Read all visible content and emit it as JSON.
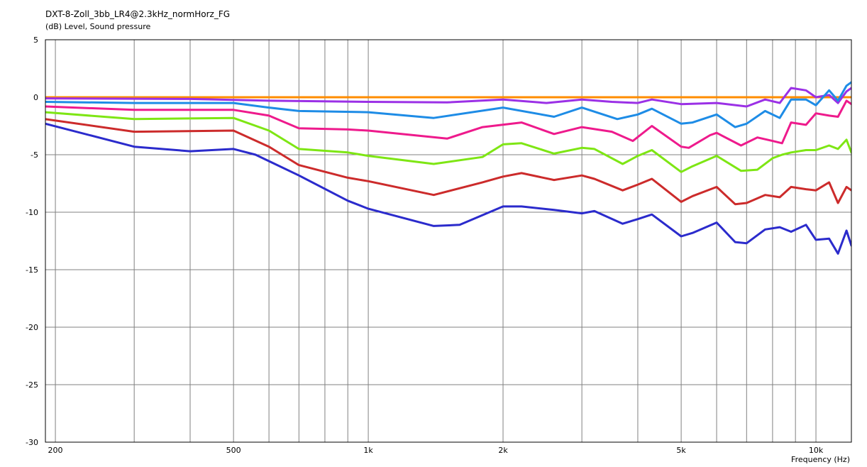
{
  "header": {
    "title": "DXT-8-Zoll_3bb_LR4@2.3kHz_normHorz_FG",
    "subtitle": "(dB)  Level, Sound pressure"
  },
  "chart_data": {
    "type": "line",
    "title": "DXT-8-Zoll_3bb_LR4@2.3kHz_normHorz_FG",
    "ylabel": "(dB)  Level, Sound pressure",
    "xlabel": "Frequency  (Hz)",
    "xscale": "log",
    "xlim": [
      190,
      12000
    ],
    "ylim": [
      -30,
      5
    ],
    "grid": true,
    "legend": "none",
    "y_ticks": [
      5,
      0,
      -5,
      -10,
      -15,
      -20,
      -25,
      -30
    ],
    "x_ticks": [
      {
        "value": 200,
        "label": "200"
      },
      {
        "value": 500,
        "label": "500"
      },
      {
        "value": 1000,
        "label": "1k"
      },
      {
        "value": 2000,
        "label": "2k"
      },
      {
        "value": 5000,
        "label": "5k"
      },
      {
        "value": 10000,
        "label": "10k"
      }
    ],
    "x_minor_grid": [
      300,
      400,
      600,
      700,
      800,
      900,
      3000,
      4000,
      6000,
      7000,
      8000,
      9000
    ],
    "series": [
      {
        "color": "#ff8c00",
        "points": [
          [
            190,
            0
          ],
          [
            500,
            0
          ],
          [
            1000,
            0
          ],
          [
            2000,
            0
          ],
          [
            5000,
            0
          ],
          [
            8000,
            0
          ],
          [
            12000,
            0
          ]
        ]
      },
      {
        "color": "#9b30e6",
        "points": [
          [
            190,
            -0.1
          ],
          [
            400,
            -0.15
          ],
          [
            600,
            -0.3
          ],
          [
            1000,
            -0.4
          ],
          [
            1500,
            -0.45
          ],
          [
            2000,
            -0.2
          ],
          [
            2500,
            -0.5
          ],
          [
            3000,
            -0.2
          ],
          [
            3500,
            -0.4
          ],
          [
            4000,
            -0.5
          ],
          [
            4300,
            -0.2
          ],
          [
            5000,
            -0.6
          ],
          [
            6000,
            -0.5
          ],
          [
            7000,
            -0.8
          ],
          [
            7700,
            -0.2
          ],
          [
            8300,
            -0.5
          ],
          [
            8800,
            0.8
          ],
          [
            9500,
            0.6
          ],
          [
            10000,
            0
          ],
          [
            10700,
            0.2
          ],
          [
            11200,
            -0.5
          ],
          [
            11700,
            0.5
          ],
          [
            12000,
            0.8
          ]
        ]
      },
      {
        "color": "#1e8ce6",
        "points": [
          [
            190,
            -0.4
          ],
          [
            300,
            -0.5
          ],
          [
            500,
            -0.5
          ],
          [
            600,
            -0.9
          ],
          [
            700,
            -1.2
          ],
          [
            1000,
            -1.3
          ],
          [
            1400,
            -1.8
          ],
          [
            2000,
            -0.9
          ],
          [
            2600,
            -1.7
          ],
          [
            3000,
            -0.9
          ],
          [
            3600,
            -1.9
          ],
          [
            4000,
            -1.5
          ],
          [
            4300,
            -1
          ],
          [
            5000,
            -2.3
          ],
          [
            5300,
            -2.2
          ],
          [
            6000,
            -1.5
          ],
          [
            6600,
            -2.6
          ],
          [
            7000,
            -2.3
          ],
          [
            7700,
            -1.2
          ],
          [
            8300,
            -1.8
          ],
          [
            8800,
            -0.2
          ],
          [
            9500,
            -0.2
          ],
          [
            10000,
            -0.7
          ],
          [
            10700,
            0.6
          ],
          [
            11200,
            -0.3
          ],
          [
            11700,
            1
          ],
          [
            12000,
            1.3
          ]
        ]
      },
      {
        "color": "#ee1a8c",
        "points": [
          [
            190,
            -0.8
          ],
          [
            300,
            -1.1
          ],
          [
            500,
            -1.1
          ],
          [
            600,
            -1.6
          ],
          [
            700,
            -2.7
          ],
          [
            900,
            -2.8
          ],
          [
            1000,
            -2.9
          ],
          [
            1500,
            -3.6
          ],
          [
            1800,
            -2.6
          ],
          [
            2200,
            -2.2
          ],
          [
            2600,
            -3.2
          ],
          [
            3000,
            -2.6
          ],
          [
            3500,
            -3
          ],
          [
            3900,
            -3.8
          ],
          [
            4300,
            -2.5
          ],
          [
            5000,
            -4.3
          ],
          [
            5200,
            -4.4
          ],
          [
            5800,
            -3.3
          ],
          [
            6000,
            -3.1
          ],
          [
            6800,
            -4.2
          ],
          [
            7400,
            -3.5
          ],
          [
            8000,
            -3.8
          ],
          [
            8400,
            -4
          ],
          [
            8800,
            -2.2
          ],
          [
            9500,
            -2.4
          ],
          [
            10000,
            -1.4
          ],
          [
            10700,
            -1.6
          ],
          [
            11200,
            -1.7
          ],
          [
            11700,
            -0.3
          ],
          [
            12000,
            -0.6
          ]
        ]
      },
      {
        "color": "#7ee614",
        "points": [
          [
            190,
            -1.3
          ],
          [
            300,
            -1.9
          ],
          [
            500,
            -1.8
          ],
          [
            600,
            -2.9
          ],
          [
            700,
            -4.5
          ],
          [
            900,
            -4.8
          ],
          [
            1000,
            -5.1
          ],
          [
            1400,
            -5.8
          ],
          [
            1800,
            -5.2
          ],
          [
            2000,
            -4.1
          ],
          [
            2200,
            -4
          ],
          [
            2600,
            -4.9
          ],
          [
            3000,
            -4.4
          ],
          [
            3200,
            -4.5
          ],
          [
            3700,
            -5.8
          ],
          [
            4000,
            -5.1
          ],
          [
            4300,
            -4.6
          ],
          [
            5000,
            -6.5
          ],
          [
            5300,
            -6
          ],
          [
            6000,
            -5.1
          ],
          [
            6800,
            -6.4
          ],
          [
            7400,
            -6.3
          ],
          [
            8000,
            -5.3
          ],
          [
            8400,
            -5
          ],
          [
            8800,
            -4.8
          ],
          [
            9500,
            -4.6
          ],
          [
            10000,
            -4.6
          ],
          [
            10700,
            -4.2
          ],
          [
            11200,
            -4.5
          ],
          [
            11700,
            -3.7
          ],
          [
            12000,
            -4.8
          ]
        ]
      },
      {
        "color": "#cc2b2b",
        "points": [
          [
            190,
            -1.9
          ],
          [
            300,
            -3
          ],
          [
            500,
            -2.9
          ],
          [
            600,
            -4.3
          ],
          [
            700,
            -5.9
          ],
          [
            900,
            -7
          ],
          [
            1000,
            -7.3
          ],
          [
            1400,
            -8.5
          ],
          [
            1800,
            -7.4
          ],
          [
            2000,
            -6.9
          ],
          [
            2200,
            -6.6
          ],
          [
            2600,
            -7.2
          ],
          [
            3000,
            -6.8
          ],
          [
            3200,
            -7.1
          ],
          [
            3700,
            -8.1
          ],
          [
            4000,
            -7.6
          ],
          [
            4300,
            -7.1
          ],
          [
            5000,
            -9.1
          ],
          [
            5300,
            -8.6
          ],
          [
            6000,
            -7.8
          ],
          [
            6600,
            -9.3
          ],
          [
            7000,
            -9.2
          ],
          [
            7700,
            -8.5
          ],
          [
            8300,
            -8.7
          ],
          [
            8800,
            -7.8
          ],
          [
            9500,
            -8
          ],
          [
            10000,
            -8.1
          ],
          [
            10700,
            -7.4
          ],
          [
            11200,
            -9.2
          ],
          [
            11700,
            -7.8
          ],
          [
            12000,
            -8.1
          ]
        ]
      },
      {
        "color": "#2b2bcc",
        "points": [
          [
            190,
            -2.3
          ],
          [
            300,
            -4.3
          ],
          [
            400,
            -4.7
          ],
          [
            500,
            -4.5
          ],
          [
            560,
            -5
          ],
          [
            700,
            -6.8
          ],
          [
            900,
            -9
          ],
          [
            1000,
            -9.7
          ],
          [
            1400,
            -11.2
          ],
          [
            1600,
            -11.1
          ],
          [
            2000,
            -9.5
          ],
          [
            2200,
            -9.5
          ],
          [
            2600,
            -9.8
          ],
          [
            3000,
            -10.1
          ],
          [
            3200,
            -9.9
          ],
          [
            3700,
            -11
          ],
          [
            4000,
            -10.6
          ],
          [
            4300,
            -10.2
          ],
          [
            5000,
            -12.1
          ],
          [
            5300,
            -11.8
          ],
          [
            6000,
            -10.9
          ],
          [
            6600,
            -12.6
          ],
          [
            7000,
            -12.7
          ],
          [
            7700,
            -11.5
          ],
          [
            8300,
            -11.3
          ],
          [
            8800,
            -11.7
          ],
          [
            9500,
            -11.1
          ],
          [
            10000,
            -12.4
          ],
          [
            10700,
            -12.3
          ],
          [
            11200,
            -13.6
          ],
          [
            11700,
            -11.6
          ],
          [
            12000,
            -12.9
          ]
        ]
      }
    ]
  }
}
